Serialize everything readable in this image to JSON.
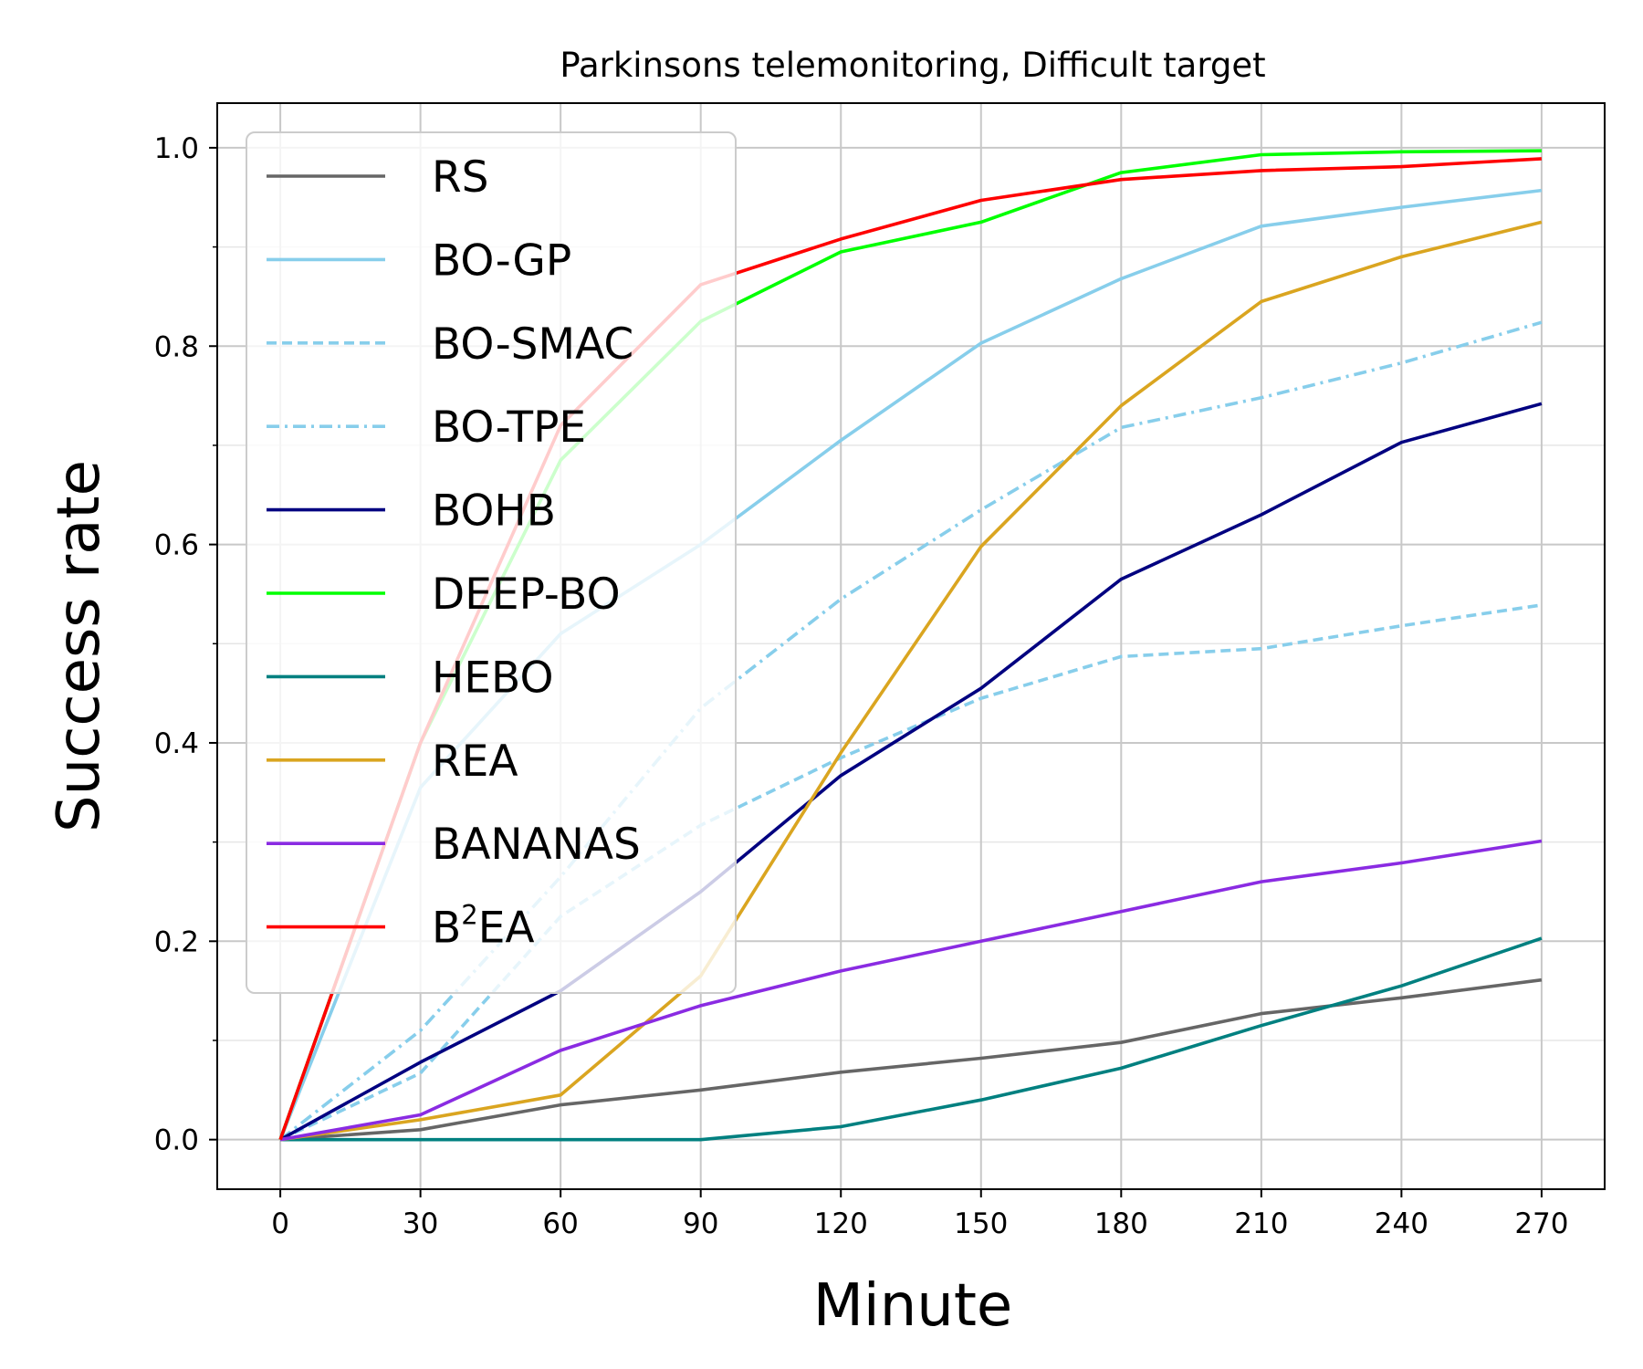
{
  "chart_data": {
    "type": "line",
    "title": "Parkinsons telemonitoring, Difficult target",
    "xlabel": "Minute",
    "ylabel": "Success rate",
    "x": [
      0,
      30,
      60,
      90,
      120,
      150,
      180,
      210,
      240,
      270
    ],
    "xlim": [
      -13.5,
      283.5
    ],
    "ylim": [
      -0.05,
      1.045
    ],
    "xticks": [
      0,
      30,
      60,
      90,
      120,
      150,
      180,
      210,
      240,
      270
    ],
    "yticks": [
      0.0,
      0.2,
      0.4,
      0.6,
      0.8,
      1.0
    ],
    "ytick_labels": [
      "0.0",
      "0.2",
      "0.4",
      "0.6",
      "0.8",
      "1.0"
    ],
    "grid": true,
    "legend_position": "upper-left",
    "series": [
      {
        "name": "RS",
        "color": "#666666",
        "dash": "solid",
        "values": [
          0.0,
          0.01,
          0.035,
          0.05,
          0.068,
          0.082,
          0.098,
          0.127,
          0.143,
          0.161
        ]
      },
      {
        "name": "BO-GP",
        "color": "#87ceeb",
        "dash": "solid",
        "values": [
          0.0,
          0.355,
          0.51,
          0.6,
          0.705,
          0.803,
          0.868,
          0.921,
          0.94,
          0.957
        ]
      },
      {
        "name": "BO-SMAC",
        "color": "#87ceeb",
        "dash": "dashed",
        "values": [
          0.0,
          0.067,
          0.225,
          0.317,
          0.385,
          0.445,
          0.487,
          0.495,
          0.518,
          0.539
        ]
      },
      {
        "name": "BO-TPE",
        "color": "#87ceeb",
        "dash": "dashdot",
        "values": [
          0.0,
          0.11,
          0.265,
          0.435,
          0.545,
          0.635,
          0.718,
          0.748,
          0.783,
          0.824
        ]
      },
      {
        "name": "BOHB",
        "color": "#000080",
        "dash": "solid",
        "values": [
          0.0,
          0.078,
          0.15,
          0.25,
          0.367,
          0.455,
          0.565,
          0.63,
          0.703,
          0.742
        ]
      },
      {
        "name": "DEEP-BO",
        "color": "#00ff00",
        "dash": "solid",
        "values": [
          0.0,
          0.4,
          0.685,
          0.825,
          0.895,
          0.925,
          0.975,
          0.993,
          0.996,
          0.997
        ]
      },
      {
        "name": "HEBO",
        "color": "#008080",
        "dash": "solid",
        "values": [
          0.0,
          0.0,
          0.0,
          0.0,
          0.013,
          0.04,
          0.072,
          0.115,
          0.155,
          0.203
        ]
      },
      {
        "name": "REA",
        "color": "#daa520",
        "dash": "solid",
        "values": [
          0.0,
          0.02,
          0.045,
          0.165,
          0.39,
          0.598,
          0.74,
          0.845,
          0.89,
          0.925
        ]
      },
      {
        "name": "BANANAS",
        "color": "#8a2be2",
        "dash": "solid",
        "values": [
          0.0,
          0.025,
          0.09,
          0.135,
          0.17,
          0.2,
          0.23,
          0.26,
          0.279,
          0.301
        ]
      },
      {
        "name": "B²EA",
        "color": "#ff0000",
        "dash": "solid",
        "label_base": "B",
        "label_sup": "2",
        "label_rest": "EA",
        "values": [
          0.0,
          0.4,
          0.72,
          0.862,
          0.908,
          0.947,
          0.968,
          0.977,
          0.981,
          0.989
        ]
      }
    ]
  }
}
